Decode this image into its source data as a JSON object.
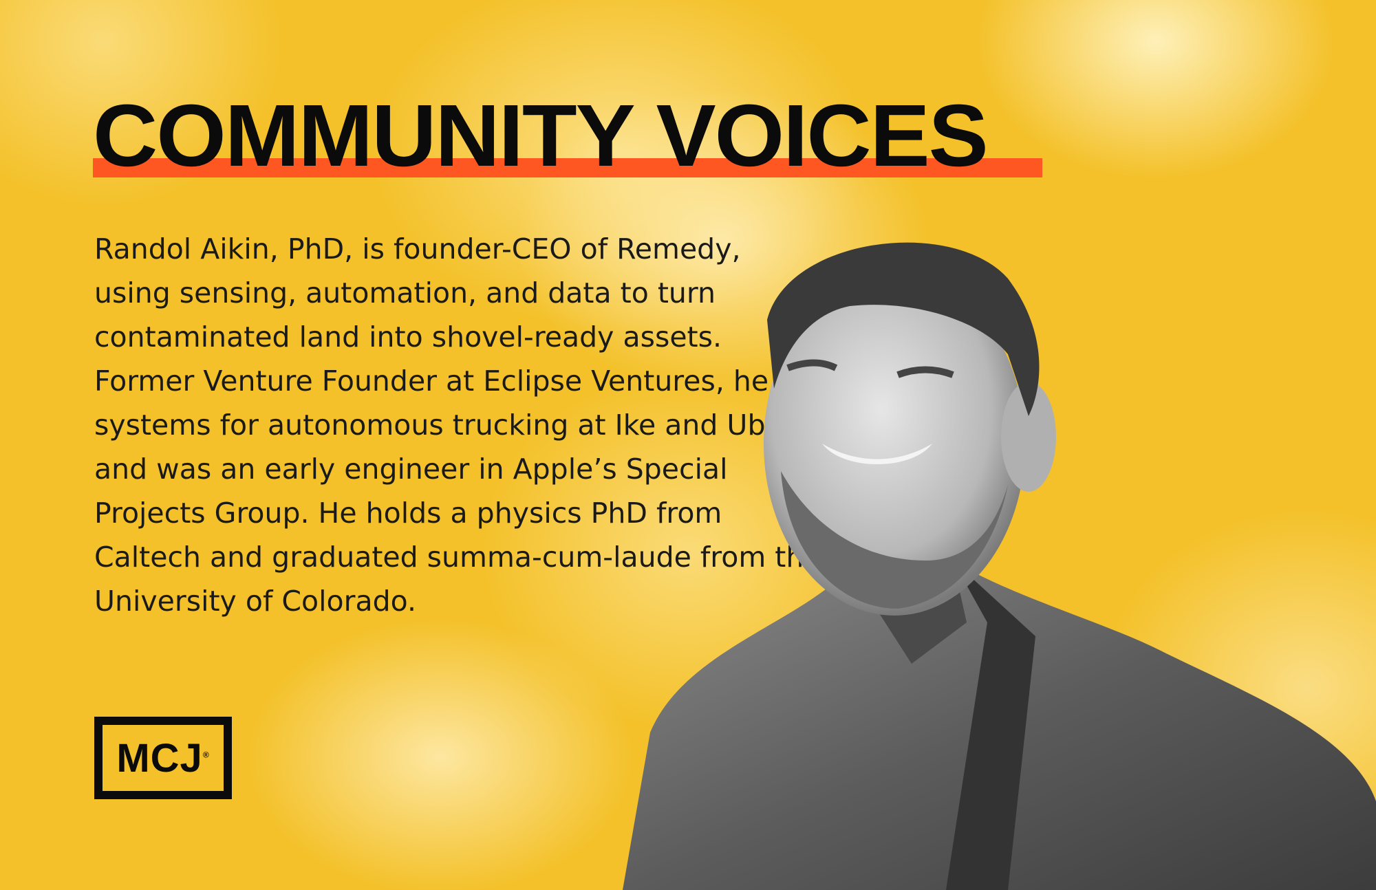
{
  "header": {
    "title": "COMMUNITY VOICES",
    "accent_color": "#ff5722"
  },
  "bio": {
    "text": "Randol Aikin, PhD, is founder-CEO of Remedy, using sensing, automation, and data to turn contaminated land into shovel-ready assets. Former Venture Founder at Eclipse Ventures, he led systems for autonomous trucking at Ike and Uber and was an early engineer in Apple’s Special Projects Group. He holds a physics PhD from Caltech and graduated summa-cum-laude from the University of Colorado."
  },
  "logo": {
    "text": "MCJ",
    "mark": "®"
  },
  "colors": {
    "background": "#f4c12a",
    "text": "#0b0b0b"
  },
  "photo": {
    "style": "grayscale portrait"
  }
}
